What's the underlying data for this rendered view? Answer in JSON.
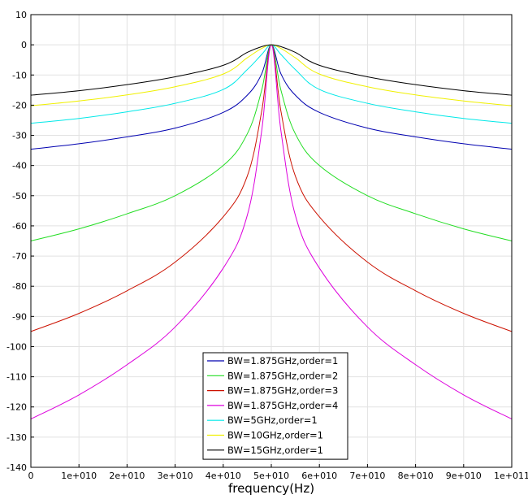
{
  "chart_data": {
    "type": "line",
    "title": "",
    "xlabel": "frequency(Hz)",
    "ylabel": "",
    "xlim": [
      0,
      100000000000
    ],
    "ylim": [
      -140,
      10
    ],
    "grid": true,
    "legend_position": "bottom-center",
    "x_ticks": [
      {
        "value": 0,
        "label": "0"
      },
      {
        "value": 10000000000,
        "label": "1e+010"
      },
      {
        "value": 20000000000,
        "label": "2e+010"
      },
      {
        "value": 30000000000,
        "label": "3e+010"
      },
      {
        "value": 40000000000,
        "label": "4e+010"
      },
      {
        "value": 50000000000,
        "label": "5e+010"
      },
      {
        "value": 60000000000,
        "label": "6e+010"
      },
      {
        "value": 70000000000,
        "label": "7e+010"
      },
      {
        "value": 80000000000,
        "label": "8e+010"
      },
      {
        "value": 90000000000,
        "label": "9e+010"
      },
      {
        "value": 100000000000,
        "label": "1e+011"
      }
    ],
    "y_ticks": [
      {
        "value": 10,
        "label": "10"
      },
      {
        "value": 0,
        "label": "0"
      },
      {
        "value": -10,
        "label": "-10"
      },
      {
        "value": -20,
        "label": "-20"
      },
      {
        "value": -30,
        "label": "-30"
      },
      {
        "value": -40,
        "label": "-40"
      },
      {
        "value": -50,
        "label": "-50"
      },
      {
        "value": -60,
        "label": "-60"
      },
      {
        "value": -70,
        "label": "-70"
      },
      {
        "value": -80,
        "label": "-80"
      },
      {
        "value": -90,
        "label": "-90"
      },
      {
        "value": -100,
        "label": "-100"
      },
      {
        "value": -110,
        "label": "-110"
      },
      {
        "value": -120,
        "label": "-120"
      },
      {
        "value": -130,
        "label": "-130"
      },
      {
        "value": -140,
        "label": "-140"
      }
    ],
    "x": [
      0,
      10000000000,
      20000000000,
      30000000000,
      40000000000,
      45000000000,
      48000000000,
      50000000000,
      52000000000,
      55000000000,
      60000000000,
      70000000000,
      80000000000,
      90000000000,
      100000000000
    ],
    "series": [
      {
        "name": "BW=1.875GHz,order=1",
        "color": "#0000b0",
        "values": [
          -34.6,
          -32.8,
          -30.5,
          -27.6,
          -22.4,
          -16.7,
          -9.6,
          0,
          -9.6,
          -16.7,
          -22.4,
          -27.6,
          -30.5,
          -32.8,
          -34.6
        ]
      },
      {
        "name": "BW=1.875GHz,order=2",
        "color": "#22dd22",
        "values": [
          -65,
          -61,
          -56,
          -50,
          -40,
          -29.5,
          -15,
          0,
          -15,
          -29.5,
          -40,
          -50,
          -56,
          -61,
          -65
        ]
      },
      {
        "name": "BW=1.875GHz,order=3",
        "color": "#cc1100",
        "values": [
          -95,
          -89,
          -81.5,
          -72,
          -57,
          -43.5,
          -22,
          0,
          -22,
          -43.5,
          -57,
          -72,
          -81.5,
          -89,
          -95
        ]
      },
      {
        "name": "BW=1.875GHz,order=4",
        "color": "#dd00dd",
        "values": [
          -124,
          -116,
          -106,
          -93.5,
          -74,
          -56.5,
          -28.5,
          0,
          -28.5,
          -56.5,
          -74,
          -93.5,
          -106,
          -116,
          -124
        ]
      },
      {
        "name": "BW=5GHz,order=1",
        "color": "#00e8e8",
        "values": [
          -26,
          -24.4,
          -22.2,
          -19.4,
          -14.8,
          -8.2,
          -3.2,
          0,
          -3.2,
          -8.2,
          -14.8,
          -19.4,
          -22.2,
          -24.4,
          -26
        ]
      },
      {
        "name": "BW=10GHz,order=1",
        "color": "#f0f000",
        "values": [
          -20.2,
          -18.6,
          -16.6,
          -13.9,
          -9.7,
          -4.3,
          -1.2,
          0,
          -1.2,
          -4.3,
          -9.7,
          -13.9,
          -16.6,
          -18.6,
          -20.2
        ]
      },
      {
        "name": "BW=15GHz,order=1",
        "color": "#000000",
        "values": [
          -16.7,
          -15.2,
          -13.2,
          -10.6,
          -6.8,
          -2.5,
          -0.6,
          0,
          -0.6,
          -2.5,
          -6.8,
          -10.6,
          -13.2,
          -15.2,
          -16.7
        ]
      }
    ]
  }
}
